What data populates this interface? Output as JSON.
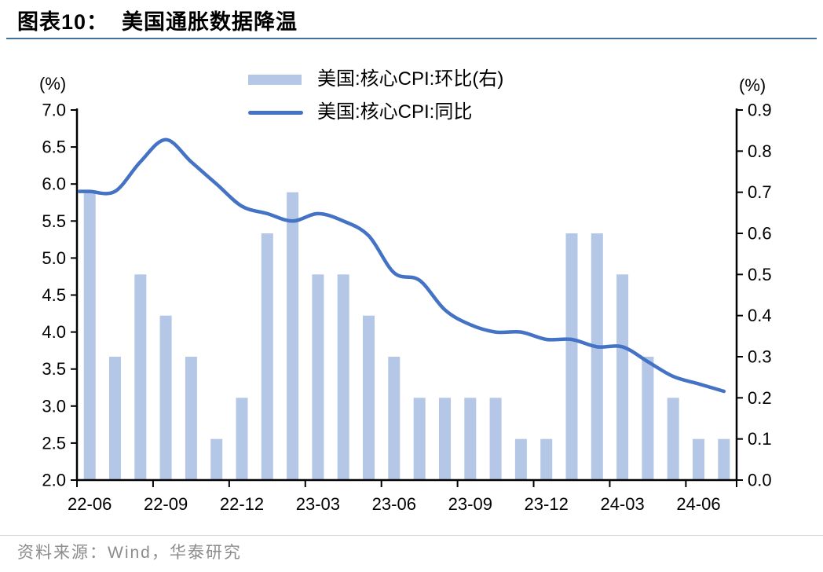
{
  "header": {
    "title": "图表10：  美国通胀数据降温"
  },
  "chart_data": {
    "type": "combo_bar_line",
    "categories": [
      "22-06",
      "22-07",
      "22-08",
      "22-09",
      "22-10",
      "22-11",
      "22-12",
      "23-01",
      "23-02",
      "23-03",
      "23-04",
      "23-05",
      "23-06",
      "23-07",
      "23-08",
      "23-09",
      "23-10",
      "23-11",
      "23-12",
      "24-01",
      "24-02",
      "24-03",
      "24-04",
      "24-05",
      "24-06",
      "24-07"
    ],
    "series": [
      {
        "name": "美国:核心CPI:环比(右)",
        "type": "bar",
        "axis": "right",
        "values": [
          0.7,
          0.3,
          0.5,
          0.4,
          0.3,
          0.1,
          0.2,
          0.6,
          0.7,
          0.5,
          0.5,
          0.4,
          0.3,
          0.2,
          0.2,
          0.2,
          0.2,
          0.1,
          0.1,
          0.6,
          0.6,
          0.5,
          0.3,
          0.2,
          0.1,
          0.1
        ]
      },
      {
        "name": "美国:核心CPI:同比",
        "type": "line",
        "axis": "left",
        "values": [
          5.9,
          5.9,
          6.3,
          6.6,
          6.3,
          6.0,
          5.7,
          5.6,
          5.5,
          5.6,
          5.5,
          5.3,
          4.8,
          4.7,
          4.3,
          4.1,
          4.0,
          4.0,
          3.9,
          3.9,
          3.8,
          3.8,
          3.6,
          3.4,
          3.3,
          3.2
        ]
      }
    ],
    "left_axis": {
      "unit": "(%)",
      "min": 2.0,
      "max": 7.0,
      "tick_step": 0.5,
      "ticks": [
        "7.0",
        "6.5",
        "6.0",
        "5.5",
        "5.0",
        "4.5",
        "4.0",
        "3.5",
        "3.0",
        "2.5",
        "2.0"
      ]
    },
    "right_axis": {
      "unit": "(%)",
      "min": 0.0,
      "max": 0.9,
      "tick_step": 0.1,
      "ticks": [
        "0.9",
        "0.8",
        "0.7",
        "0.6",
        "0.5",
        "0.4",
        "0.3",
        "0.2",
        "0.1",
        "0.0"
      ]
    },
    "x_axis": {
      "tick_every": 3,
      "tick_labels": [
        "22-06",
        "22-09",
        "22-12",
        "23-03",
        "23-06",
        "23-09",
        "23-12",
        "24-03",
        "24-06"
      ]
    },
    "legend_position": "top",
    "grid": false
  },
  "footer": {
    "source": "资料来源：Wind，华泰研究"
  },
  "colors": {
    "bar_fill": "#B4C7E7",
    "line_stroke": "#4472C4",
    "title_underline": "#44709D",
    "axis": "#000000",
    "tick_label": "#000000",
    "footer_divider": "#D9D9D9",
    "footer_text": "#8C8C8C"
  }
}
